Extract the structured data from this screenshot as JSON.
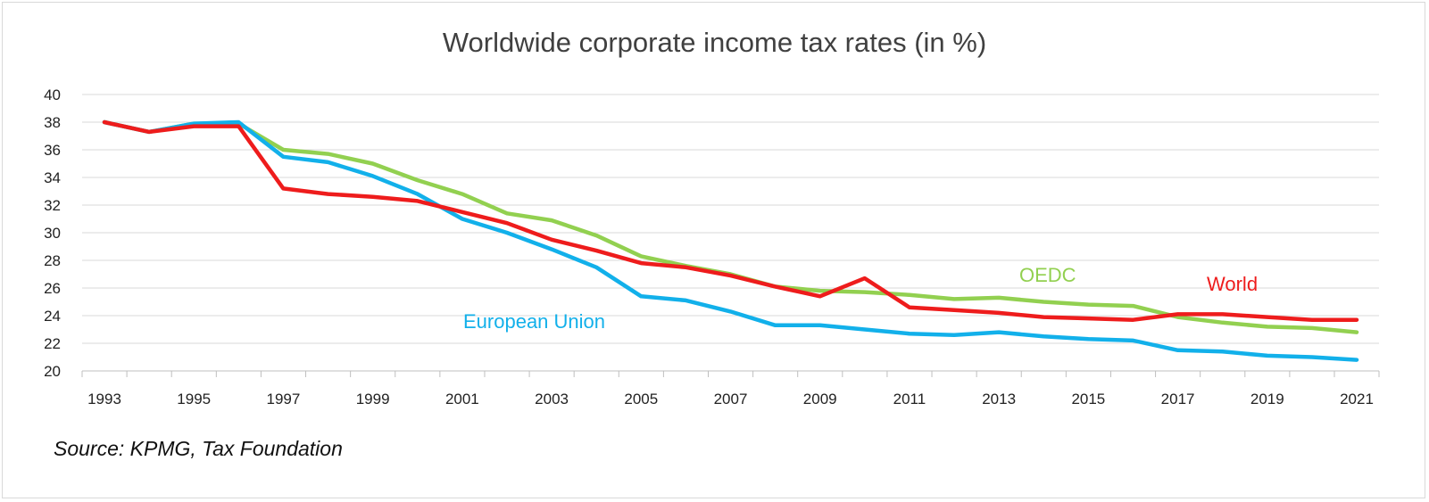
{
  "chart_data": {
    "type": "line",
    "title": "Worldwide corporate income tax rates (in %)",
    "xlabel": "",
    "ylabel": "",
    "source": "Source: KPMG, Tax Foundation",
    "ylim": [
      20,
      40
    ],
    "yticks": [
      20,
      22,
      24,
      26,
      28,
      30,
      32,
      34,
      36,
      38,
      40
    ],
    "xlim": [
      1993,
      2021
    ],
    "xtick_labels": [
      1993,
      1995,
      1997,
      1999,
      2001,
      2003,
      2005,
      2007,
      2009,
      2011,
      2013,
      2015,
      2017,
      2019,
      2021
    ],
    "grid": "horizontal",
    "legend": "inline labels",
    "x": [
      1993,
      1994,
      1995,
      1996,
      1997,
      1998,
      1999,
      2000,
      2001,
      2002,
      2003,
      2004,
      2005,
      2006,
      2007,
      2008,
      2009,
      2010,
      2011,
      2012,
      2013,
      2014,
      2015,
      2016,
      2017,
      2018,
      2019,
      2020,
      2021
    ],
    "series": [
      {
        "name": "OEDC",
        "color": "#92d050",
        "values": [
          38.0,
          37.3,
          37.9,
          37.9,
          36.0,
          35.7,
          35.0,
          33.8,
          32.8,
          31.4,
          30.9,
          29.8,
          28.3,
          27.6,
          27.0,
          26.1,
          25.8,
          25.7,
          25.5,
          25.2,
          25.3,
          25.0,
          24.8,
          24.7,
          23.9,
          23.5,
          23.2,
          23.1,
          22.8
        ]
      },
      {
        "name": "European Union",
        "color": "#12b0ea",
        "values": [
          38.0,
          37.3,
          37.9,
          38.0,
          35.5,
          35.1,
          34.1,
          32.8,
          31.0,
          30.0,
          28.8,
          27.5,
          25.4,
          25.1,
          24.3,
          23.3,
          23.3,
          23.0,
          22.7,
          22.6,
          22.8,
          22.5,
          22.3,
          22.2,
          21.5,
          21.4,
          21.1,
          21.0,
          20.8
        ]
      },
      {
        "name": "World",
        "color": "#ee1c1c",
        "values": [
          38.0,
          37.3,
          37.7,
          37.7,
          33.2,
          32.8,
          32.6,
          32.3,
          31.5,
          30.7,
          29.5,
          28.7,
          27.8,
          27.5,
          26.9,
          26.1,
          25.4,
          26.7,
          24.6,
          24.4,
          24.2,
          23.9,
          23.8,
          23.7,
          24.1,
          24.1,
          23.9,
          23.7,
          23.7
        ]
      }
    ]
  }
}
